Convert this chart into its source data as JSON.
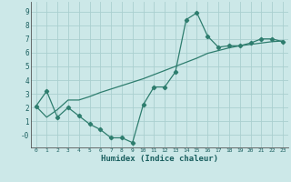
{
  "xlabel": "Humidex (Indice chaleur)",
  "bg_color": "#cce8e8",
  "grid_color": "#aacfcf",
  "line_color": "#2e7d6e",
  "xlim": [
    -0.5,
    23.5
  ],
  "ylim": [
    -0.9,
    9.7
  ],
  "xticks": [
    0,
    1,
    2,
    3,
    4,
    5,
    6,
    7,
    8,
    9,
    10,
    11,
    12,
    13,
    14,
    15,
    16,
    17,
    18,
    19,
    20,
    21,
    22,
    23
  ],
  "yticks": [
    0,
    1,
    2,
    3,
    4,
    5,
    6,
    7,
    8,
    9
  ],
  "ytick_labels": [
    "-0",
    "1",
    "2",
    "3",
    "4",
    "5",
    "6",
    "7",
    "8",
    "9"
  ],
  "line1_x": [
    0,
    1,
    2,
    3,
    4,
    5,
    6,
    7,
    8,
    9,
    10,
    11,
    12,
    13,
    14,
    15,
    16,
    17,
    18,
    19,
    20,
    21,
    22,
    23
  ],
  "line1_y": [
    2.1,
    3.2,
    1.3,
    2.0,
    1.4,
    0.8,
    0.4,
    -0.2,
    -0.2,
    -0.55,
    2.2,
    3.5,
    3.5,
    4.6,
    8.4,
    8.9,
    7.2,
    6.4,
    6.5,
    6.5,
    6.7,
    7.0,
    7.0,
    6.8
  ],
  "line2_x": [
    0,
    1,
    2,
    3,
    4,
    5,
    6,
    7,
    8,
    9,
    10,
    11,
    12,
    13,
    14,
    15,
    16,
    17,
    18,
    19,
    20,
    21,
    22,
    23
  ],
  "line2_y": [
    2.1,
    1.3,
    1.85,
    2.55,
    2.55,
    2.8,
    3.1,
    3.35,
    3.6,
    3.85,
    4.1,
    4.4,
    4.7,
    5.0,
    5.3,
    5.6,
    5.95,
    6.15,
    6.35,
    6.5,
    6.6,
    6.7,
    6.8,
    6.85
  ]
}
